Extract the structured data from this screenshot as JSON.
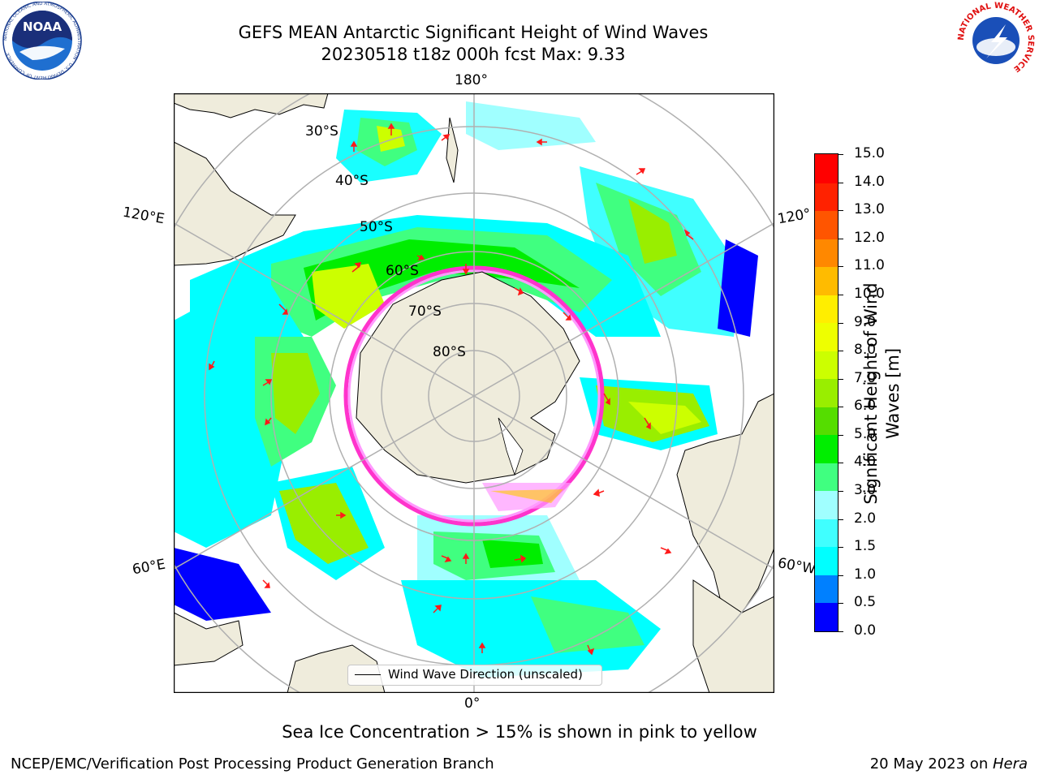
{
  "header": {
    "title_line1": "GEFS MEAN Antarctic Significant Height of Wind Waves",
    "title_line2": "20230518 t18z 000h fcst   Max: 9.33"
  },
  "logos": {
    "noaa_text": "NOAA",
    "noaa_ring_text": "NATIONAL OCEANIC AND ATMOSPHERIC ADMINISTRATION · U.S. DEPARTMENT OF COMMERCE",
    "nws_ring_text": "NATIONAL WEATHER SERVICE"
  },
  "map": {
    "projection": "south-polar-stereographic",
    "longitude_labels": {
      "top": "180°",
      "bottom": "0°",
      "left_upper": "120°E",
      "right_upper": "120°",
      "left_lower": "60°E",
      "right_lower": "60°W"
    },
    "latitude_labels": [
      "30°S",
      "40°S",
      "50°S",
      "60°S",
      "70°S",
      "80°S"
    ],
    "legend_label": "Wind Wave Direction (unscaled)",
    "land_color": "#efecdc",
    "gridline_color": "#b0b0b0",
    "arrow_color": "#ff1a1a",
    "sea_ice_colors": [
      "#ff33cc",
      "#ff99ff",
      "#ffcc00"
    ]
  },
  "colorbar": {
    "label_line1": "Significant Height of Wind",
    "label_line2": "Waves [m]",
    "ticks": [
      "0.0",
      "0.5",
      "1.0",
      "1.5",
      "2.0",
      "3.0",
      "4.0",
      "5.0",
      "6.0",
      "7.0",
      "8.0",
      "9.0",
      "10.0",
      "11.0",
      "12.0",
      "13.0",
      "14.0",
      "15.0"
    ],
    "colors": [
      "#0000ff",
      "#0080ff",
      "#00ffff",
      "#40ffff",
      "#a0ffff",
      "#40ff80",
      "#00ee00",
      "#55dd00",
      "#99ee00",
      "#ccff00",
      "#eeff00",
      "#ffee00",
      "#ffbb00",
      "#ff8800",
      "#ff5500",
      "#ff2200",
      "#ff0000"
    ]
  },
  "notes": {
    "sea_ice": "Sea Ice Concentration > 15% is shown in pink to yellow"
  },
  "footer": {
    "left": "NCEP/EMC/Verification Post Processing Product Generation Branch",
    "right_prefix": "20 May 2023 on ",
    "right_host": "Hera"
  }
}
